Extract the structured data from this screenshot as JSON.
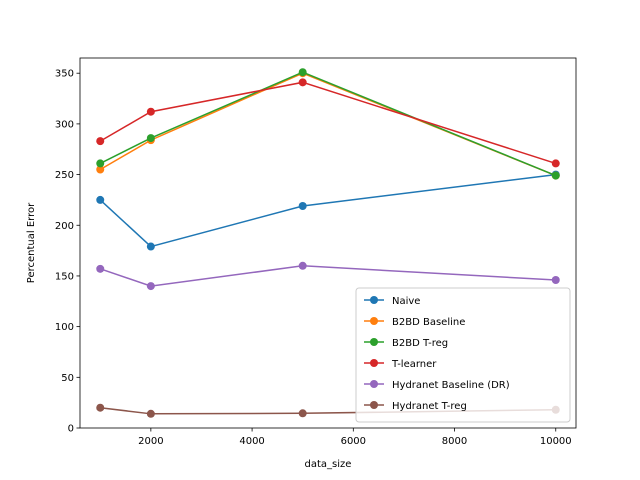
{
  "chart_data": {
    "type": "line",
    "title": "",
    "xlabel": "data_size",
    "ylabel": "Percentual Error",
    "x": [
      1000,
      2000,
      5000,
      10000
    ],
    "xlim": [
      600,
      10400
    ],
    "ylim": [
      0,
      365
    ],
    "xticks": [
      2000,
      4000,
      6000,
      8000,
      10000
    ],
    "yticks": [
      0,
      50,
      100,
      150,
      200,
      250,
      300,
      350
    ],
    "grid": false,
    "legend_placement": "lower-right",
    "series": [
      {
        "name": "Naive",
        "color": "#1f77b4",
        "values": [
          225,
          179,
          219,
          250
        ]
      },
      {
        "name": "B2BD Baseline",
        "color": "#ff7f0e",
        "values": [
          255,
          284,
          350,
          249
        ]
      },
      {
        "name": "B2BD T-reg",
        "color": "#2ca02c",
        "values": [
          261,
          286,
          351,
          249
        ]
      },
      {
        "name": "T-learner",
        "color": "#d62728",
        "values": [
          283,
          312,
          341,
          261
        ]
      },
      {
        "name": "Hydranet Baseline (DR)",
        "color": "#9467bd",
        "values": [
          157,
          140,
          160,
          146
        ]
      },
      {
        "name": "Hydranet T-reg",
        "color": "#8c564b",
        "values": [
          20,
          14,
          14.5,
          18
        ]
      }
    ]
  }
}
